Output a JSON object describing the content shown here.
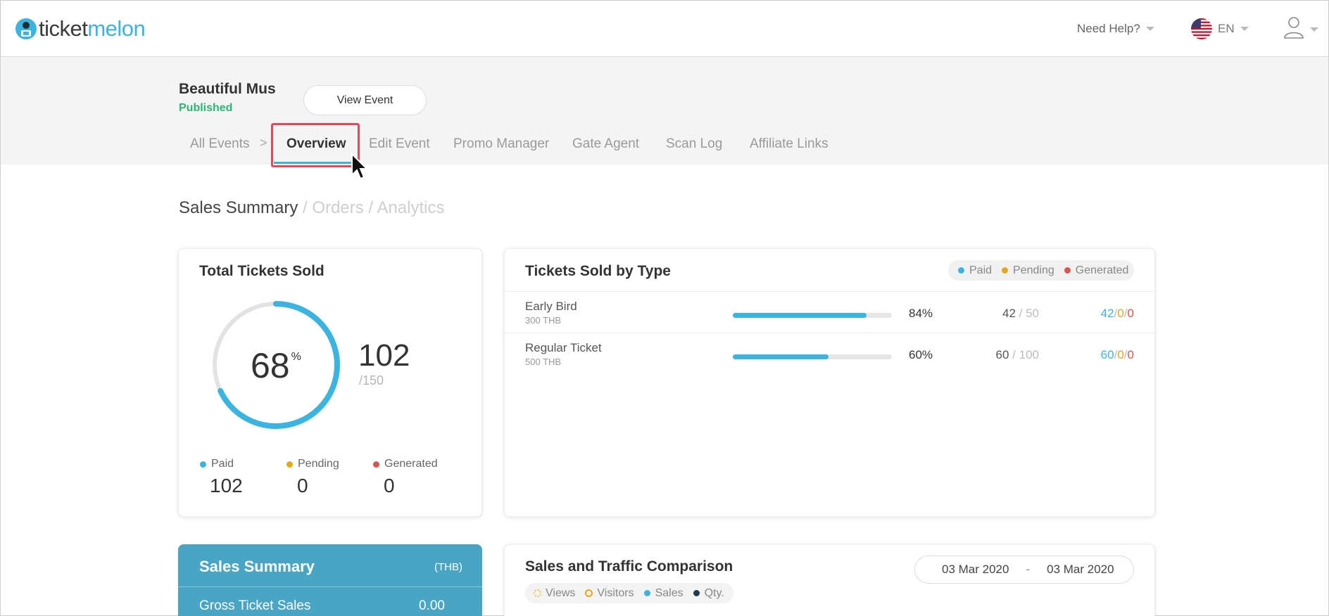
{
  "header": {
    "logo_text_dark": "ticket",
    "logo_text_brand": "melon",
    "help_label": "Need Help?",
    "language": "EN"
  },
  "event": {
    "title": "Beautiful Mus",
    "status": "Published",
    "view_button": "View Event"
  },
  "nav": {
    "items": [
      {
        "label": "All Events"
      },
      {
        "label": "Overview"
      },
      {
        "label": "Edit Event"
      },
      {
        "label": "Promo Manager"
      },
      {
        "label": "Gate Agent"
      },
      {
        "label": "Scan Log"
      },
      {
        "label": "Affiliate Links"
      }
    ],
    "separator": ">"
  },
  "subnav": {
    "active": "Sales Summary",
    "sep1": " / ",
    "orders": "Orders",
    "sep2": " / ",
    "analytics": "Analytics"
  },
  "total_tickets": {
    "title": "Total Tickets Sold",
    "percent": "68",
    "percent_sign": "%",
    "percent_value": 68,
    "sold": "102",
    "capacity": "/150",
    "legend": [
      {
        "label": "Paid",
        "value": "102",
        "color": "#3ab4e0"
      },
      {
        "label": "Pending",
        "value": "0",
        "color": "#e6a817"
      },
      {
        "label": "Generated",
        "value": "0",
        "color": "#d9534f"
      }
    ]
  },
  "tickets_by_type": {
    "title": "Tickets Sold by Type",
    "legend": [
      {
        "label": "Paid",
        "color": "#3ab4e0"
      },
      {
        "label": "Pending",
        "color": "#e6a817"
      },
      {
        "label": "Generated",
        "color": "#d9534f"
      }
    ],
    "rows": [
      {
        "name": "Early Bird",
        "price": "300 THB",
        "pct": "84%",
        "pct_value": 84,
        "sold": "42",
        "of": " / 50",
        "paid": "42",
        "pending": "0",
        "generated": "0"
      },
      {
        "name": "Regular Ticket",
        "price": "500 THB",
        "pct": "60%",
        "pct_value": 60,
        "sold": "60",
        "of": " / 100",
        "paid": "60",
        "pending": "0",
        "generated": "0"
      }
    ]
  },
  "sales_summary": {
    "title": "Sales Summary",
    "unit": "(THB)",
    "gross_label": "Gross Ticket Sales",
    "gross_value": "0.00"
  },
  "comparison": {
    "title": "Sales and Traffic Comparison",
    "date_from": "03 Mar 2020",
    "date_sep": "-",
    "date_to": "03 Mar 2020",
    "legend": [
      {
        "label": "Views",
        "color": "#f0c040"
      },
      {
        "label": "Visitors",
        "color": "#e6a817"
      },
      {
        "label": "Sales",
        "color": "#3ab4e0"
      },
      {
        "label": "Qty.",
        "color": "#1f3a4d"
      }
    ]
  }
}
